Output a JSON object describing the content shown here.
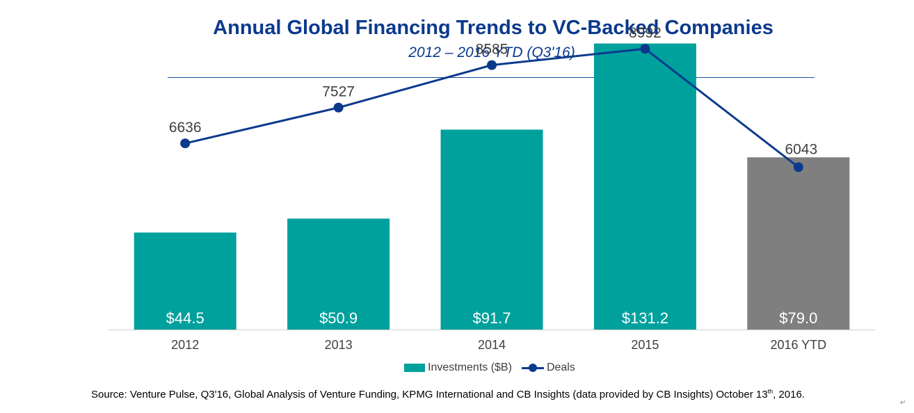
{
  "chart_data": {
    "type": "bar",
    "title": "Annual Global Financing Trends to VC-Backed Companies",
    "subtitle": "2012 – 2016 YTD (Q3'16)",
    "categories": [
      "2012",
      "2013",
      "2014",
      "2015",
      "2016 YTD"
    ],
    "series": [
      {
        "name": "Investments ($B)",
        "type": "bar",
        "values": [
          44.5,
          50.9,
          91.7,
          131.2,
          79.0
        ],
        "labels": [
          "$44.5",
          "$50.9",
          "$91.7",
          "$131.2",
          "$79.0"
        ],
        "color": "#00a09d",
        "highlight_color": "#7f7f7f",
        "highlight_index": 4
      },
      {
        "name": "Deals",
        "type": "line",
        "values": [
          6636,
          7527,
          8585,
          8992,
          6043
        ],
        "labels": [
          "6636",
          "7527",
          "8585",
          "8992",
          "6043"
        ],
        "color": "#0b3a8c"
      }
    ],
    "bar_axis_range": [
      0,
      140
    ],
    "line_axis_range": [
      2000,
      9600
    ],
    "legend": "bottom-center",
    "grid": false
  },
  "source": {
    "before_sup": "Source: Venture Pulse, Q3'16, Global Analysis of Venture Funding, KPMG International and CB Insights (data provided by CB Insights) October 13",
    "sup": "th",
    "after_sup": ", 2016."
  },
  "return_mark": "↵"
}
